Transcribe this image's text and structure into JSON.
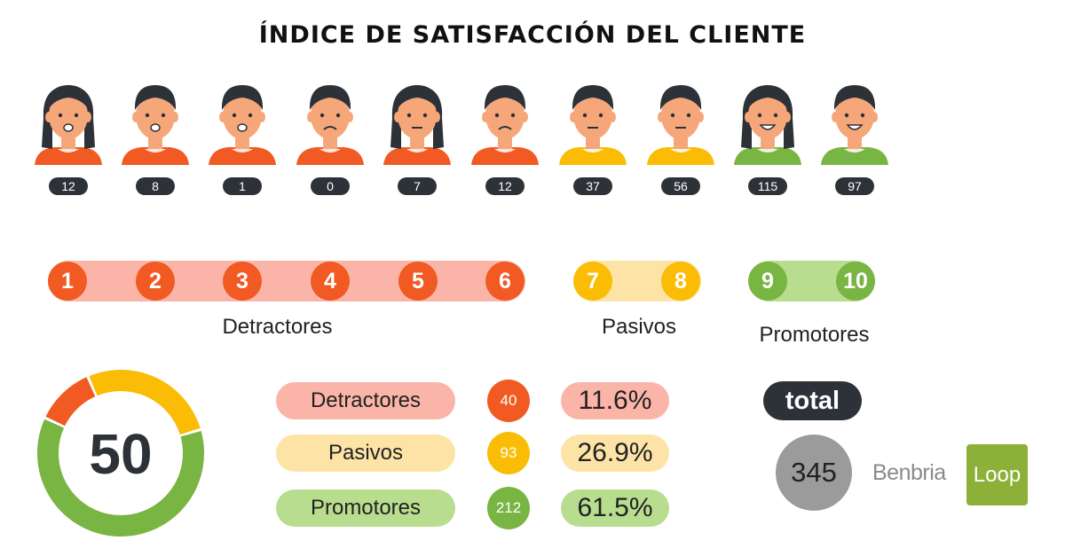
{
  "title": "ÍNDICE DE SATISFACCIÓN DEL CLIENTE",
  "colors": {
    "detractor": "#f15a22",
    "detractor_light": "#fbb5a8",
    "pasivo": "#fbbc05",
    "pasivo_light": "#fde4a6",
    "promotor": "#79b542",
    "promotor_light": "#b9dd8f",
    "dark": "#2d3238",
    "grey": "#9b9b9b"
  },
  "chart_data": [
    {
      "type": "bar",
      "categories": [
        "1",
        "2",
        "3",
        "4",
        "5",
        "6",
        "7",
        "8",
        "9",
        "10"
      ],
      "values": [
        12,
        8,
        1,
        0,
        7,
        12,
        37,
        56,
        115,
        97
      ],
      "groups": [
        {
          "label": "Detractores",
          "scores": [
            "1",
            "2",
            "3",
            "4",
            "5",
            "6"
          ]
        },
        {
          "label": "Pasivos",
          "scores": [
            "7",
            "8"
          ]
        },
        {
          "label": "Promotores",
          "scores": [
            "9",
            "10"
          ]
        }
      ]
    },
    {
      "type": "pie",
      "center_value": "50",
      "slices": [
        {
          "label": "Detractores",
          "count": "40",
          "percent": "11.6%",
          "value": 11.6
        },
        {
          "label": "Pasivos",
          "count": "93",
          "percent": "26.9%",
          "value": 26.9
        },
        {
          "label": "Promotores",
          "count": "212",
          "percent": "61.5%",
          "value": 61.5
        }
      ]
    }
  ],
  "total": {
    "label": "total",
    "value": "345"
  },
  "brand": {
    "name": "Benbria",
    "box": "Loop"
  }
}
